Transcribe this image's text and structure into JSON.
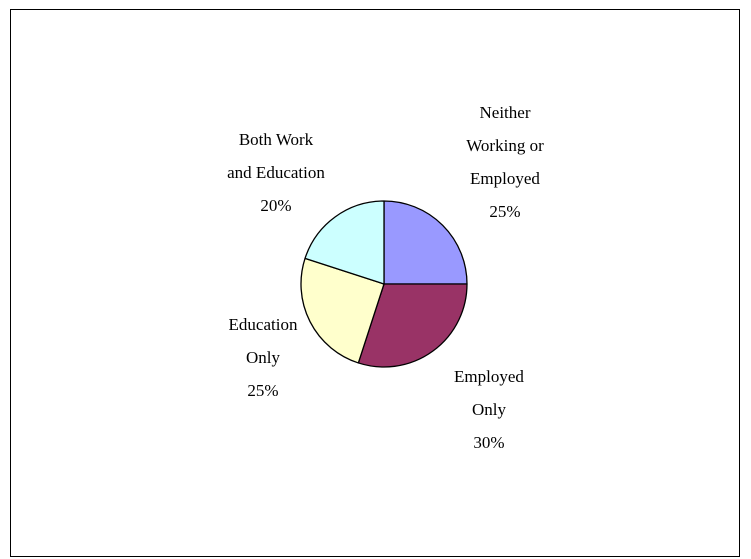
{
  "chart_data": {
    "type": "pie",
    "title": "",
    "slices": [
      {
        "name": "Neither Working or Employed",
        "label_lines": [
          "Neither",
          "Working or",
          "Employed"
        ],
        "value": 25,
        "value_label": "25%",
        "color": "#9999ff"
      },
      {
        "name": "Employed Only",
        "label_lines": [
          "Employed",
          "Only"
        ],
        "value": 30,
        "value_label": "30%",
        "color": "#993366"
      },
      {
        "name": "Education Only",
        "label_lines": [
          "Education",
          "Only"
        ],
        "value": 25,
        "value_label": "25%",
        "color": "#ffffcc"
      },
      {
        "name": "Both Work and Education",
        "label_lines": [
          "Both Work",
          "and Education"
        ],
        "value": 20,
        "value_label": "20%",
        "color": "#ccffff"
      }
    ],
    "start_angle_deg": 0,
    "direction": "clockwise",
    "legend": "none"
  }
}
